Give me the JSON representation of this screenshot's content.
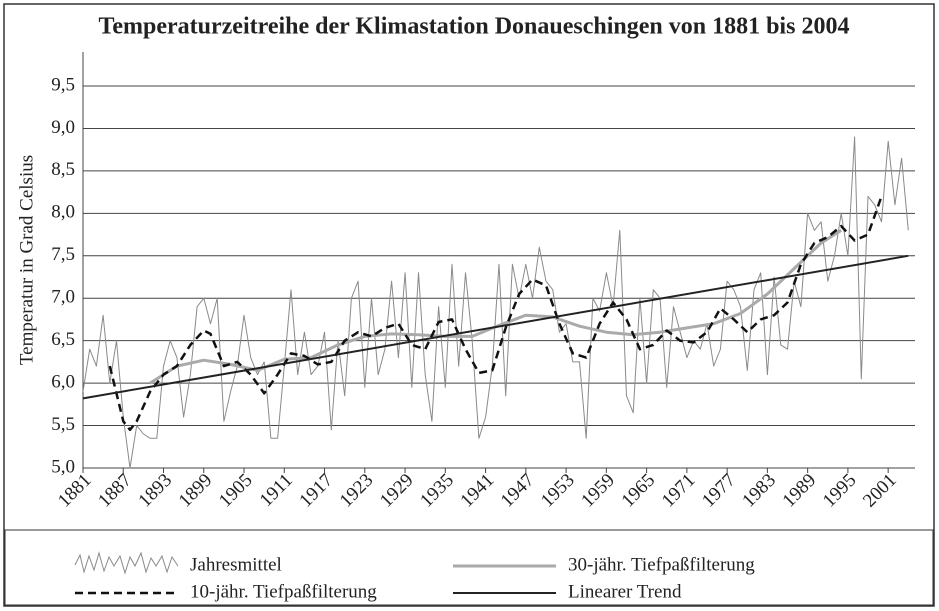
{
  "chart_data": {
    "type": "line",
    "title": "Temperaturzeitreihe der Klimastation Donaueschingen von 1881 bis 2004",
    "ylabel": "Temperatur in Grad Celsius",
    "xlim": [
      1881,
      2005
    ],
    "xticks": [
      1881,
      1887,
      1893,
      1899,
      1905,
      1911,
      1917,
      1923,
      1929,
      1935,
      1941,
      1947,
      1953,
      1959,
      1965,
      1971,
      1977,
      1983,
      1989,
      1995,
      2001
    ],
    "ylim": [
      5.0,
      9.5
    ],
    "yticks": [
      {
        "value": 5.0,
        "label": "5,0"
      },
      {
        "value": 5.5,
        "label": "5,5"
      },
      {
        "value": 6.0,
        "label": "6,0"
      },
      {
        "value": 6.5,
        "label": "6,5"
      },
      {
        "value": 7.0,
        "label": "7,0"
      },
      {
        "value": 7.5,
        "label": "7,5"
      },
      {
        "value": 8.0,
        "label": "8,0"
      },
      {
        "value": 8.5,
        "label": "8,5"
      },
      {
        "value": 9.0,
        "label": "9,0"
      },
      {
        "value": 9.5,
        "label": "9,5"
      }
    ],
    "grid": true,
    "legend": "bottom",
    "series": [
      {
        "name": "Jahresmittel",
        "color": "#8a8a8a",
        "width": 1,
        "x": [
          1881,
          1882,
          1883,
          1884,
          1885,
          1886,
          1887,
          1888,
          1889,
          1890,
          1891,
          1892,
          1893,
          1894,
          1895,
          1896,
          1897,
          1898,
          1899,
          1900,
          1901,
          1902,
          1903,
          1904,
          1905,
          1906,
          1907,
          1908,
          1909,
          1910,
          1911,
          1912,
          1913,
          1914,
          1915,
          1916,
          1917,
          1918,
          1919,
          1920,
          1921,
          1922,
          1923,
          1924,
          1925,
          1926,
          1927,
          1928,
          1929,
          1930,
          1931,
          1932,
          1933,
          1934,
          1935,
          1936,
          1937,
          1938,
          1939,
          1940,
          1941,
          1942,
          1943,
          1944,
          1945,
          1946,
          1947,
          1948,
          1949,
          1950,
          1951,
          1952,
          1953,
          1954,
          1955,
          1956,
          1957,
          1958,
          1959,
          1960,
          1961,
          1962,
          1963,
          1964,
          1965,
          1966,
          1967,
          1968,
          1969,
          1970,
          1971,
          1972,
          1973,
          1974,
          1975,
          1976,
          1977,
          1978,
          1979,
          1980,
          1981,
          1982,
          1983,
          1984,
          1985,
          1986,
          1987,
          1988,
          1989,
          1990,
          1991,
          1992,
          1993,
          1994,
          1995,
          1996,
          1997,
          1998,
          1999,
          2000,
          2001,
          2002,
          2003,
          2004
        ],
        "values": [
          5.9,
          6.4,
          6.2,
          6.8,
          6.0,
          6.5,
          5.6,
          5.0,
          5.5,
          5.4,
          5.35,
          5.35,
          6.2,
          6.5,
          6.3,
          5.6,
          6.1,
          6.9,
          7.0,
          6.7,
          7.0,
          5.55,
          5.9,
          6.2,
          6.8,
          6.3,
          6.1,
          6.25,
          5.35,
          5.35,
          6.2,
          7.1,
          6.1,
          6.6,
          6.1,
          6.2,
          6.6,
          5.45,
          6.5,
          5.85,
          7.0,
          7.2,
          5.95,
          7.0,
          6.1,
          6.4,
          7.2,
          6.3,
          7.3,
          5.95,
          7.3,
          6.1,
          5.55,
          6.9,
          5.95,
          7.4,
          6.2,
          7.3,
          6.5,
          5.35,
          5.6,
          6.2,
          7.4,
          5.85,
          7.4,
          7.0,
          7.4,
          7.0,
          7.6,
          7.2,
          7.1,
          6.6,
          6.7,
          6.25,
          6.25,
          5.35,
          7.0,
          6.85,
          7.3,
          6.9,
          7.8,
          5.85,
          5.65,
          7.0,
          6.0,
          7.1,
          7.0,
          5.95,
          6.9,
          6.6,
          6.3,
          6.5,
          6.4,
          6.7,
          6.2,
          6.4,
          7.2,
          7.1,
          6.9,
          6.15,
          7.1,
          7.3,
          6.1,
          7.25,
          6.45,
          6.4,
          7.2,
          6.9,
          8.0,
          7.8,
          7.9,
          7.2,
          7.5,
          8.0,
          7.5,
          8.9,
          6.05,
          8.2,
          8.1,
          7.9,
          8.85,
          8.1,
          8.65,
          7.8
        ]
      },
      {
        "name": "30-jähr. Tiefpaßfilterung",
        "color": "#aaaaaa",
        "width": 3,
        "x": [
          1891,
          1895,
          1899,
          1903,
          1907,
          1911,
          1915,
          1919,
          1923,
          1927,
          1931,
          1935,
          1939,
          1943,
          1947,
          1951,
          1955,
          1959,
          1963,
          1967,
          1971,
          1975,
          1979,
          1983,
          1987,
          1991,
          1994
        ],
        "values": [
          6.0,
          6.2,
          6.27,
          6.22,
          6.15,
          6.28,
          6.3,
          6.45,
          6.55,
          6.58,
          6.57,
          6.55,
          6.55,
          6.68,
          6.8,
          6.78,
          6.67,
          6.6,
          6.57,
          6.6,
          6.65,
          6.7,
          6.82,
          7.05,
          7.35,
          7.65,
          7.8
        ]
      },
      {
        "name": "10-jähr. Tiefpaßfilterung",
        "color": "#111111",
        "width": 2.5,
        "dash": true,
        "x": [
          1885,
          1887,
          1888,
          1889,
          1891,
          1893,
          1895,
          1897,
          1899,
          1900,
          1902,
          1904,
          1906,
          1908,
          1910,
          1912,
          1914,
          1916,
          1918,
          1920,
          1922,
          1924,
          1926,
          1928,
          1930,
          1932,
          1934,
          1936,
          1938,
          1940,
          1942,
          1944,
          1946,
          1948,
          1950,
          1952,
          1954,
          1956,
          1958,
          1960,
          1962,
          1964,
          1966,
          1968,
          1970,
          1972,
          1974,
          1976,
          1978,
          1980,
          1982,
          1984,
          1986,
          1988,
          1990,
          1992,
          1994,
          1996,
          1998,
          2000
        ],
        "values": [
          6.2,
          5.55,
          5.45,
          5.55,
          5.9,
          6.1,
          6.2,
          6.45,
          6.62,
          6.58,
          6.2,
          6.25,
          6.1,
          5.88,
          6.1,
          6.35,
          6.32,
          6.22,
          6.25,
          6.5,
          6.6,
          6.55,
          6.65,
          6.7,
          6.45,
          6.4,
          6.72,
          6.75,
          6.4,
          6.12,
          6.15,
          6.65,
          7.05,
          7.22,
          7.15,
          6.7,
          6.35,
          6.3,
          6.7,
          6.95,
          6.75,
          6.4,
          6.45,
          6.62,
          6.5,
          6.48,
          6.6,
          6.88,
          6.75,
          6.6,
          6.75,
          6.8,
          6.95,
          7.4,
          7.65,
          7.72,
          7.85,
          7.68,
          7.75,
          8.2
        ]
      },
      {
        "name": "Linearer Trend",
        "color": "#222222",
        "width": 2,
        "x": [
          1881,
          2004
        ],
        "values": [
          5.82,
          7.5
        ]
      }
    ]
  }
}
